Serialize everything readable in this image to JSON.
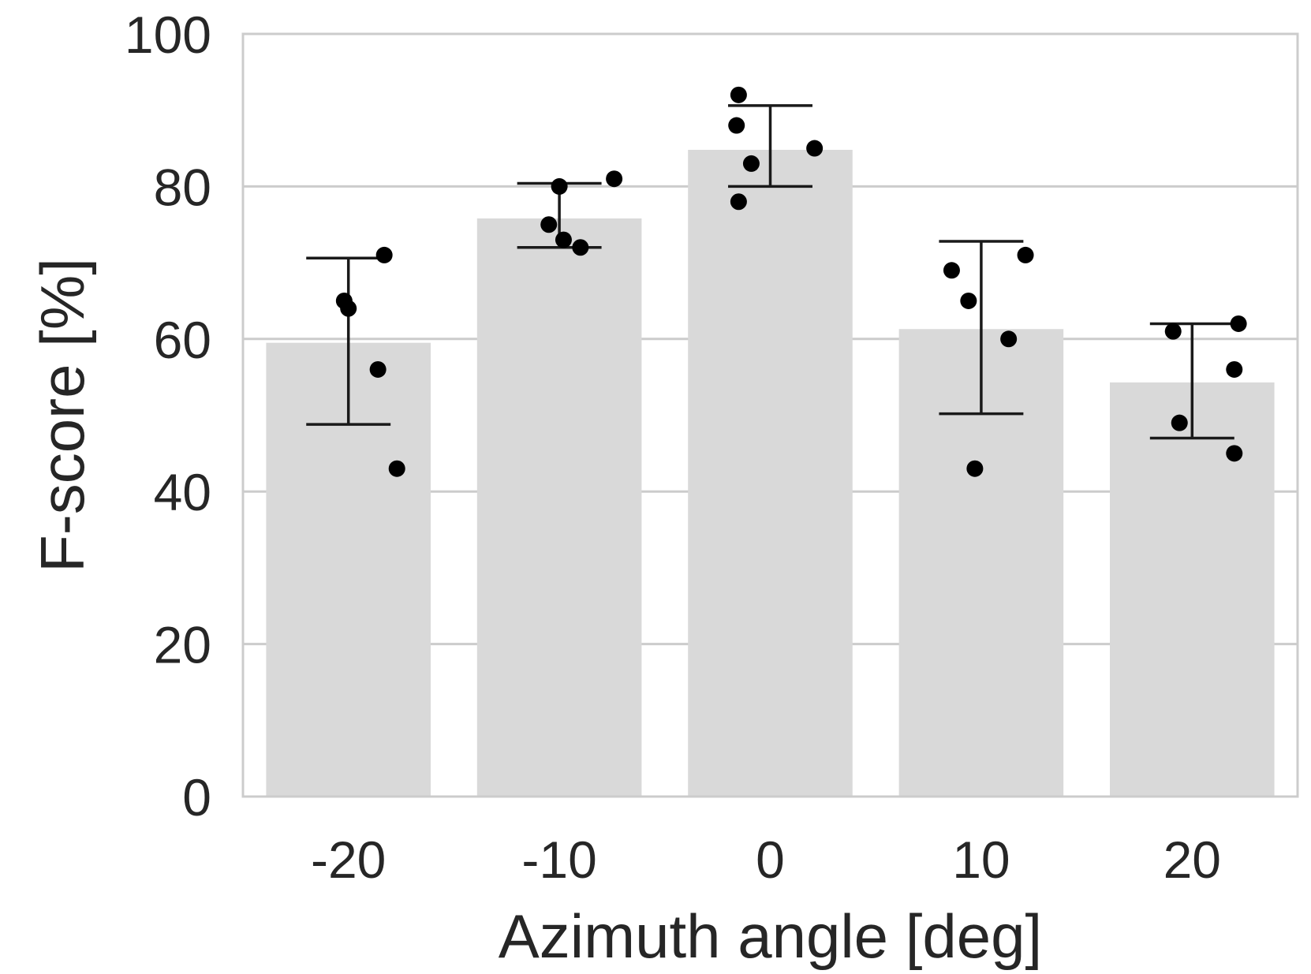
{
  "chart_data": {
    "type": "bar",
    "title": "",
    "xlabel": "Azimuth angle [deg]",
    "ylabel": "F-score [%]",
    "ylim": [
      0,
      100
    ],
    "yticks": [
      "0",
      "20",
      "40",
      "60",
      "80",
      "100"
    ],
    "grid": "horizontal",
    "categories": [
      "-20",
      "-10",
      "0",
      "10",
      "20"
    ],
    "values": [
      59.5,
      75.8,
      84.8,
      61.3,
      54.3
    ],
    "error_bars": [
      {
        "low": 48.8,
        "high": 70.6
      },
      {
        "low": 72.0,
        "high": 80.4
      },
      {
        "low": 80.0,
        "high": 90.6
      },
      {
        "low": 50.2,
        "high": 72.8
      },
      {
        "low": 47.0,
        "high": 62.0
      }
    ],
    "points": [
      {
        "category": "-20",
        "jitter": [
          0.17,
          -0.02,
          0.0,
          0.14,
          0.23
        ],
        "values": [
          71.0,
          65.0,
          64.0,
          56.0,
          43.0
        ]
      },
      {
        "category": "-10",
        "jitter": [
          0.26,
          0.0,
          -0.05,
          0.02,
          0.1
        ],
        "values": [
          81.0,
          80.0,
          75.0,
          73.0,
          72.0
        ]
      },
      {
        "category": "0",
        "jitter": [
          -0.15,
          -0.16,
          0.21,
          -0.09,
          -0.15
        ],
        "values": [
          92.0,
          88.0,
          85.0,
          83.0,
          78.0
        ]
      },
      {
        "category": "10",
        "jitter": [
          0.21,
          -0.14,
          -0.06,
          0.13,
          -0.03
        ],
        "values": [
          71.0,
          69.0,
          65.0,
          60.0,
          43.0
        ]
      },
      {
        "category": "20",
        "jitter": [
          -0.09,
          0.22,
          0.2,
          -0.06,
          0.2
        ],
        "values": [
          61.0,
          62.0,
          56.0,
          49.0,
          45.0
        ]
      }
    ],
    "colors": {
      "bar": "#d9d9d9",
      "grid": "#cccccc",
      "frame": "#cccccc",
      "point": "#000000",
      "errorbar": "#1a1a1a",
      "text": "#262626"
    }
  }
}
